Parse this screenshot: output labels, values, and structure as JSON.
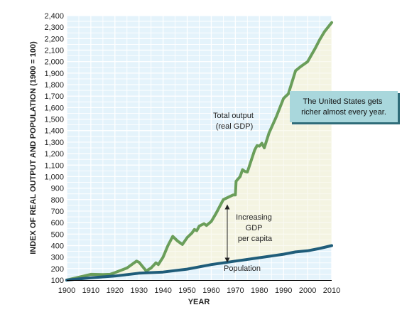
{
  "chart_data": {
    "type": "line",
    "title": "",
    "xlabel": "YEAR",
    "ylabel": "INDEX OF REAL OUTPUT AND POPULATION (1900 = 100)",
    "xlim": [
      1900,
      2010
    ],
    "ylim": [
      100,
      2400
    ],
    "x_ticks": [
      "1900",
      "1910",
      "1920",
      "1930",
      "1940",
      "1950",
      "1960",
      "1970",
      "1980",
      "1990",
      "2000",
      "2010"
    ],
    "y_ticks": [
      "100",
      "200",
      "300",
      "400",
      "500",
      "600",
      "700",
      "800",
      "900",
      "1,000",
      "1,100",
      "1,200",
      "1,300",
      "1,400",
      "1,500",
      "1,600",
      "1,700",
      "1,800",
      "1,900",
      "2,000",
      "2,100",
      "2,200",
      "2,300",
      "2,400"
    ],
    "grid": true,
    "shaded_region_between_series": true,
    "colors": {
      "total_output": "#6a9e5a",
      "population": "#1f5d7a",
      "plot_background": "#e4f3fb",
      "fill_between": "#f4f4e2",
      "grid": "#ffffff",
      "callout_fill": "#a9d7dc",
      "callout_shadow": "#2f6c79"
    },
    "series": [
      {
        "key": "total_output",
        "points": [
          [
            1900,
            100
          ],
          [
            1905,
            125
          ],
          [
            1910,
            150
          ],
          [
            1915,
            148
          ],
          [
            1918,
            150
          ],
          [
            1920,
            165
          ],
          [
            1925,
            205
          ],
          [
            1929,
            265
          ],
          [
            1930,
            255
          ],
          [
            1933,
            180
          ],
          [
            1935,
            205
          ],
          [
            1937,
            250
          ],
          [
            1938,
            235
          ],
          [
            1940,
            300
          ],
          [
            1942,
            400
          ],
          [
            1944,
            480
          ],
          [
            1946,
            440
          ],
          [
            1948,
            410
          ],
          [
            1950,
            470
          ],
          [
            1952,
            510
          ],
          [
            1953,
            540
          ],
          [
            1954,
            530
          ],
          [
            1955,
            570
          ],
          [
            1957,
            590
          ],
          [
            1958,
            575
          ],
          [
            1960,
            610
          ],
          [
            1962,
            680
          ],
          [
            1965,
            800
          ],
          [
            1966,
            810
          ],
          [
            1969,
            840
          ],
          [
            1970,
            840
          ],
          [
            1970.3,
            960
          ],
          [
            1972,
            1000
          ],
          [
            1973,
            1060
          ],
          [
            1974,
            1045
          ],
          [
            1975,
            1040
          ],
          [
            1978,
            1230
          ],
          [
            1979,
            1270
          ],
          [
            1980,
            1265
          ],
          [
            1981,
            1290
          ],
          [
            1982,
            1250
          ],
          [
            1984,
            1380
          ],
          [
            1987,
            1520
          ],
          [
            1990,
            1680
          ],
          [
            1991,
            1700
          ],
          [
            1992,
            1720
          ],
          [
            1995,
            1920
          ],
          [
            1997,
            1955
          ],
          [
            2000,
            2000
          ],
          [
            2003,
            2110
          ],
          [
            2005,
            2190
          ],
          [
            2007,
            2260
          ],
          [
            2010,
            2340
          ]
        ]
      },
      {
        "key": "population",
        "points": [
          [
            1900,
            100
          ],
          [
            1910,
            120
          ],
          [
            1920,
            135
          ],
          [
            1930,
            160
          ],
          [
            1940,
            170
          ],
          [
            1950,
            195
          ],
          [
            1960,
            235
          ],
          [
            1970,
            265
          ],
          [
            1980,
            295
          ],
          [
            1990,
            325
          ],
          [
            1995,
            345
          ],
          [
            2000,
            355
          ],
          [
            2005,
            375
          ],
          [
            2010,
            400
          ]
        ]
      }
    ],
    "annotations": {
      "total_output": [
        "Total output",
        "(real GDP)"
      ],
      "gdp_per_capita": [
        "Increasing",
        "GDP",
        "per capita"
      ],
      "population": "Population",
      "callout": [
        "The United States gets",
        "richer almost every year."
      ]
    }
  }
}
